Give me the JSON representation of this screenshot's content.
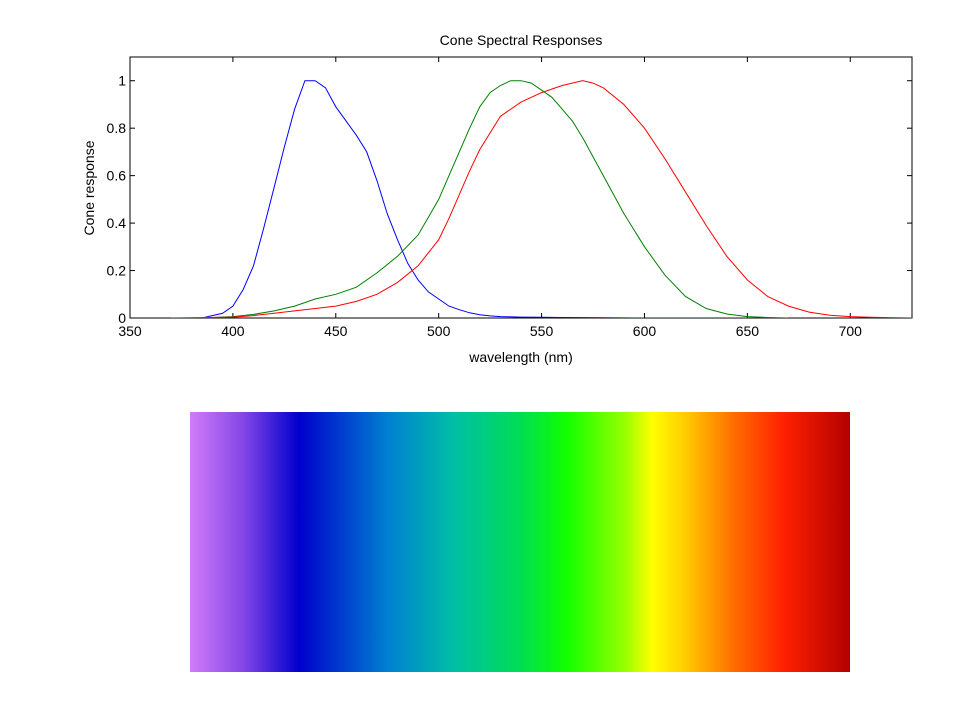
{
  "chart_data": {
    "type": "line",
    "title": "Cone Spectral Responses",
    "xlabel": "wavelength (nm)",
    "ylabel": "Cone response",
    "xlim": [
      350,
      730
    ],
    "ylim": [
      0,
      1.1
    ],
    "xticks": [
      350,
      400,
      450,
      500,
      550,
      600,
      650,
      700
    ],
    "yticks": [
      0,
      0.2,
      0.4,
      0.6,
      0.8,
      1
    ],
    "ytick_labels": [
      "0",
      "0.2",
      "0.4",
      "0.6",
      "0.8",
      "1"
    ],
    "grid": false,
    "series": [
      {
        "color": "#0000ff",
        "x": [
          385,
          390,
          395,
          400,
          405,
          410,
          415,
          420,
          425,
          430,
          435,
          440,
          445,
          450,
          455,
          460,
          465,
          470,
          475,
          480,
          485,
          490,
          495,
          500,
          505,
          510,
          515,
          520,
          525,
          530,
          540,
          550,
          560,
          580,
          600,
          630,
          665
        ],
        "y": [
          0.0,
          0.01,
          0.02,
          0.05,
          0.12,
          0.22,
          0.38,
          0.55,
          0.72,
          0.88,
          1.0,
          1.0,
          0.97,
          0.89,
          0.83,
          0.77,
          0.7,
          0.58,
          0.44,
          0.33,
          0.23,
          0.16,
          0.11,
          0.08,
          0.05,
          0.035,
          0.022,
          0.014,
          0.009,
          0.006,
          0.004,
          0.003,
          0.002,
          0.001,
          0.0,
          0.0,
          0.0
        ]
      },
      {
        "color": "#008000",
        "x": [
          385,
          400,
          410,
          420,
          430,
          440,
          450,
          460,
          470,
          480,
          490,
          500,
          505,
          510,
          515,
          520,
          525,
          530,
          535,
          540,
          545,
          550,
          555,
          560,
          565,
          570,
          575,
          580,
          590,
          600,
          610,
          620,
          630,
          640,
          650,
          660,
          670
        ],
        "y": [
          0.0,
          0.006,
          0.015,
          0.03,
          0.05,
          0.08,
          0.1,
          0.13,
          0.19,
          0.26,
          0.35,
          0.5,
          0.6,
          0.7,
          0.8,
          0.89,
          0.95,
          0.98,
          1.0,
          1.0,
          0.99,
          0.96,
          0.93,
          0.88,
          0.83,
          0.76,
          0.68,
          0.6,
          0.44,
          0.3,
          0.18,
          0.09,
          0.04,
          0.017,
          0.006,
          0.002,
          0.0
        ]
      },
      {
        "color": "#ff0000",
        "x": [
          370,
          400,
          410,
          420,
          430,
          440,
          450,
          460,
          470,
          480,
          490,
          500,
          505,
          510,
          515,
          520,
          525,
          530,
          540,
          550,
          560,
          570,
          575,
          580,
          590,
          600,
          610,
          620,
          630,
          640,
          650,
          660,
          670,
          680,
          690,
          700,
          710,
          730
        ],
        "y": [
          0.0,
          0.004,
          0.01,
          0.02,
          0.03,
          0.04,
          0.05,
          0.07,
          0.1,
          0.15,
          0.22,
          0.33,
          0.42,
          0.52,
          0.62,
          0.71,
          0.78,
          0.85,
          0.91,
          0.95,
          0.98,
          1.0,
          0.99,
          0.97,
          0.9,
          0.8,
          0.67,
          0.53,
          0.39,
          0.26,
          0.16,
          0.09,
          0.05,
          0.025,
          0.012,
          0.006,
          0.003,
          0.0
        ]
      }
    ]
  },
  "spectrum_bar": {
    "stops": [
      {
        "offset": 0.0,
        "color": "#d07cf7"
      },
      {
        "offset": 0.08,
        "color": "#8546e8"
      },
      {
        "offset": 0.165,
        "color": "#0000cc"
      },
      {
        "offset": 0.3,
        "color": "#0080d0"
      },
      {
        "offset": 0.4,
        "color": "#00bfa6"
      },
      {
        "offset": 0.5,
        "color": "#00dd55"
      },
      {
        "offset": 0.5,
        "color": "#00dd55"
      },
      {
        "offset": 0.57,
        "color": "#11ff00"
      },
      {
        "offset": 0.66,
        "color": "#99ff00"
      },
      {
        "offset": 0.7,
        "color": "#ffff00"
      },
      {
        "offset": 0.75,
        "color": "#ffcc00"
      },
      {
        "offset": 0.83,
        "color": "#ff6600"
      },
      {
        "offset": 0.9,
        "color": "#ff2000"
      },
      {
        "offset": 1.0,
        "color": "#b30000"
      }
    ]
  }
}
